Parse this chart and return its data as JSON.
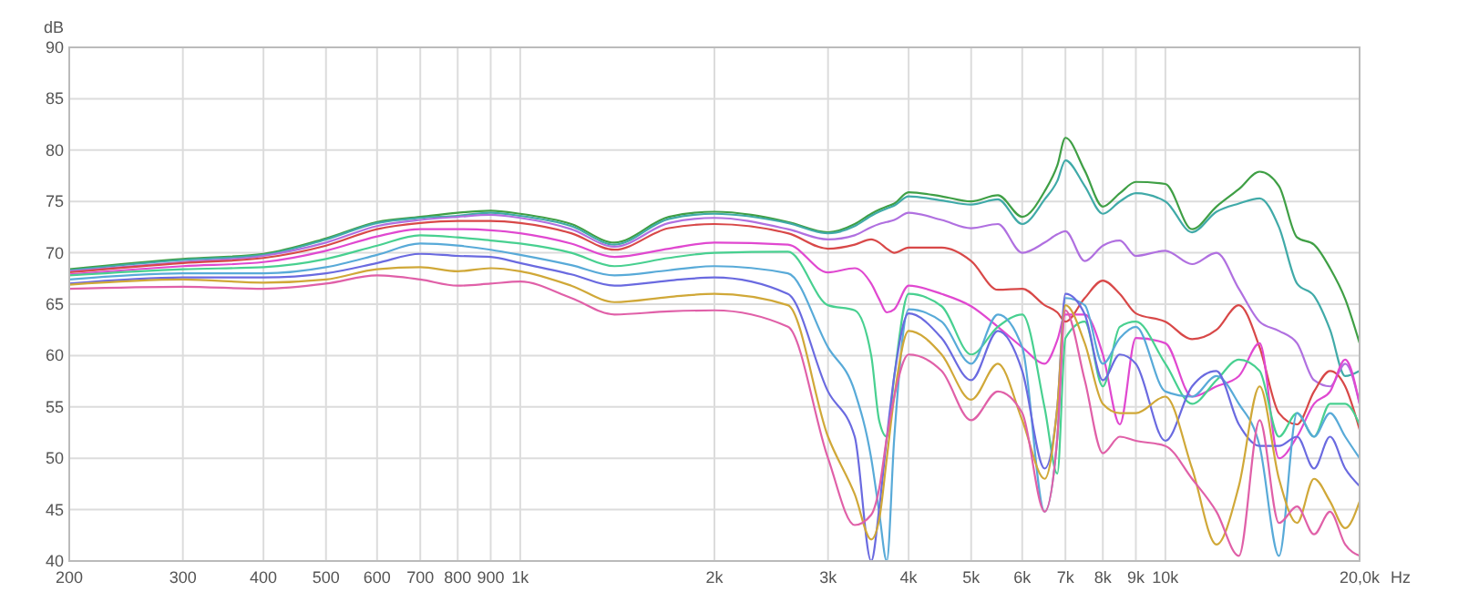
{
  "chart_data": {
    "type": "line",
    "xlabel": "Hz",
    "ylabel": "dB",
    "log": "x",
    "grid": true,
    "line_style": "solid",
    "marker": "none",
    "x": [
      200,
      300,
      400,
      500,
      600,
      700,
      800,
      900,
      1000,
      1200,
      1400,
      1700,
      2000,
      2600,
      3000,
      3300,
      3500,
      3600,
      3700,
      3800,
      4000,
      4500,
      5000,
      5500,
      6000,
      6500,
      6800,
      7000,
      7500,
      8000,
      8500,
      9000,
      10000,
      11000,
      12000,
      13000,
      14000,
      15000,
      16000,
      17000,
      18000,
      19000,
      20000
    ],
    "xlim": [
      200,
      20000
    ],
    "xticks": [
      200,
      300,
      400,
      500,
      600,
      700,
      800,
      900,
      {
        "value": 1000,
        "label": "1k"
      },
      {
        "value": 2000,
        "label": "2k"
      },
      {
        "value": 3000,
        "label": "3k"
      },
      {
        "value": 4000,
        "label": "4k"
      },
      {
        "value": 5000,
        "label": "5k"
      },
      {
        "value": 6000,
        "label": "6k"
      },
      {
        "value": 7000,
        "label": "7k"
      },
      {
        "value": 8000,
        "label": "8k"
      },
      {
        "value": 9000,
        "label": "9k"
      },
      {
        "value": 10000,
        "label": "10k"
      },
      {
        "value": 20000,
        "label": "20,0k"
      }
    ],
    "ylim": [
      40,
      90
    ],
    "yticks": [
      40,
      45,
      50,
      55,
      60,
      65,
      70,
      75,
      80,
      85,
      90
    ],
    "series": [
      {
        "color": "#3f9f45",
        "values": [
          68.4,
          69.4,
          69.9,
          71.4,
          73.0,
          73.5,
          73.9,
          74.1,
          73.8,
          72.8,
          71.0,
          73.5,
          74.0,
          73.0,
          72.0,
          72.8,
          73.8,
          74.2,
          74.5,
          74.8,
          75.9,
          75.5,
          75.0,
          75.6,
          73.5,
          76.0,
          78.5,
          81.2,
          78.0,
          74.5,
          75.8,
          76.9,
          76.7,
          72.3,
          74.5,
          76.2,
          77.9,
          76.5,
          71.5,
          70.8,
          68.5,
          65.5,
          61.2
        ]
      },
      {
        "color": "#40aaa8",
        "values": [
          68.3,
          69.3,
          69.8,
          71.3,
          72.9,
          73.4,
          73.6,
          73.9,
          73.6,
          72.6,
          70.8,
          73.3,
          73.8,
          72.9,
          71.9,
          72.6,
          73.6,
          74.0,
          74.3,
          74.6,
          75.5,
          75.1,
          74.7,
          75.2,
          72.8,
          75.2,
          77.0,
          79.0,
          76.5,
          73.8,
          75.0,
          75.8,
          75.0,
          72.0,
          74.0,
          74.8,
          75.3,
          72.5,
          67.0,
          65.8,
          62.5,
          58.0,
          58.5
        ]
      },
      {
        "color": "#b070e0",
        "values": [
          68.2,
          69.1,
          69.7,
          71.0,
          72.6,
          73.2,
          73.5,
          73.7,
          73.4,
          72.3,
          70.6,
          72.9,
          73.4,
          72.3,
          71.3,
          71.7,
          72.5,
          72.8,
          73.0,
          73.2,
          73.9,
          73.2,
          72.4,
          72.8,
          70.0,
          71.0,
          71.8,
          72.1,
          69.2,
          70.7,
          71.2,
          69.7,
          70.2,
          68.9,
          70.0,
          66.5,
          63.3,
          62.4,
          61.2,
          57.6,
          57.0,
          59.2,
          55.3
        ]
      },
      {
        "color": "#d84848",
        "values": [
          68.1,
          69.0,
          69.5,
          70.7,
          72.3,
          72.9,
          73.1,
          73.1,
          72.9,
          71.9,
          70.3,
          72.4,
          72.8,
          71.9,
          70.4,
          70.8,
          71.3,
          71.0,
          70.4,
          70.0,
          70.5,
          70.5,
          69.2,
          66.4,
          66.5,
          64.9,
          64.2,
          63.3,
          65.6,
          67.3,
          66.0,
          64.1,
          63.3,
          61.6,
          62.5,
          64.9,
          60.8,
          54.4,
          53.3,
          56.5,
          58.5,
          57.0,
          52.8
        ]
      },
      {
        "color": "#e048d0",
        "values": [
          67.9,
          68.7,
          69.1,
          70.2,
          71.6,
          72.3,
          72.3,
          72.2,
          71.9,
          70.9,
          69.6,
          70.4,
          71.0,
          70.8,
          68.1,
          68.5,
          67.0,
          65.5,
          64.2,
          64.5,
          66.8,
          66.0,
          64.8,
          62.8,
          60.8,
          59.2,
          61.5,
          64.0,
          64.0,
          60.1,
          53.3,
          61.7,
          61.2,
          56.0,
          57.0,
          58.0,
          61.2,
          50.0,
          52.1,
          55.3,
          56.5,
          59.6,
          55.3
        ]
      },
      {
        "color": "#48d090",
        "values": [
          67.8,
          68.4,
          68.6,
          69.4,
          70.7,
          71.7,
          71.5,
          71.2,
          70.9,
          70.0,
          68.7,
          69.5,
          70.0,
          70.1,
          64.9,
          64.4,
          60.0,
          53.7,
          52.1,
          58.0,
          66.0,
          64.8,
          60.1,
          62.8,
          64.0,
          54.9,
          48.5,
          61.7,
          63.3,
          57.0,
          62.8,
          63.3,
          59.2,
          55.3,
          57.6,
          59.6,
          58.5,
          52.1,
          54.4,
          52.1,
          55.3,
          55.3,
          53.3
        ]
      },
      {
        "color": "#58aad8",
        "values": [
          67.4,
          68.0,
          68.0,
          68.6,
          69.8,
          70.9,
          70.7,
          70.3,
          69.8,
          68.8,
          67.8,
          68.3,
          68.7,
          68.0,
          60.8,
          56.5,
          50.0,
          44.8,
          40.0,
          52.0,
          64.5,
          63.3,
          59.2,
          64.0,
          60.8,
          44.8,
          52.0,
          65.6,
          64.9,
          59.2,
          61.7,
          62.8,
          56.5,
          56.0,
          58.0,
          55.3,
          51.2,
          40.5,
          54.4,
          52.1,
          54.4,
          52.1,
          50.0
        ]
      },
      {
        "color": "#6a6ae0",
        "values": [
          67.0,
          67.6,
          67.6,
          68.0,
          69.0,
          69.9,
          69.7,
          69.6,
          69.0,
          67.9,
          66.8,
          67.3,
          67.6,
          66.0,
          56.5,
          52.1,
          40.0,
          45.0,
          52.0,
          58.0,
          64.1,
          61.7,
          57.6,
          62.4,
          58.5,
          49.0,
          55.0,
          66.0,
          64.0,
          57.6,
          60.1,
          59.2,
          51.7,
          57.0,
          58.5,
          53.3,
          51.2,
          51.2,
          52.1,
          49.0,
          52.1,
          49.0,
          47.3
        ]
      },
      {
        "color": "#d0a838",
        "values": [
          66.9,
          67.4,
          67.1,
          67.4,
          68.4,
          68.6,
          68.2,
          68.5,
          68.2,
          66.8,
          65.2,
          65.7,
          66.0,
          64.9,
          52.1,
          46.5,
          42.1,
          44.0,
          50.0,
          56.0,
          62.4,
          60.1,
          55.7,
          59.2,
          53.7,
          48.0,
          55.0,
          64.9,
          61.2,
          55.3,
          54.4,
          54.4,
          56.0,
          49.0,
          41.6,
          47.3,
          57.0,
          48.0,
          43.7,
          48.0,
          45.8,
          43.2,
          45.8
        ]
      },
      {
        "color": "#e060a8",
        "values": [
          66.5,
          66.7,
          66.5,
          67.0,
          67.8,
          67.4,
          66.8,
          67.0,
          67.2,
          65.6,
          64.0,
          64.3,
          64.4,
          62.8,
          50.0,
          43.5,
          44.5,
          47.0,
          52.0,
          56.0,
          60.1,
          58.5,
          53.7,
          56.5,
          54.4,
          44.8,
          52.0,
          64.4,
          57.6,
          50.5,
          52.1,
          51.7,
          51.2,
          48.0,
          44.8,
          40.5,
          53.7,
          43.7,
          45.3,
          42.6,
          44.8,
          41.6,
          40.5
        ]
      }
    ]
  }
}
